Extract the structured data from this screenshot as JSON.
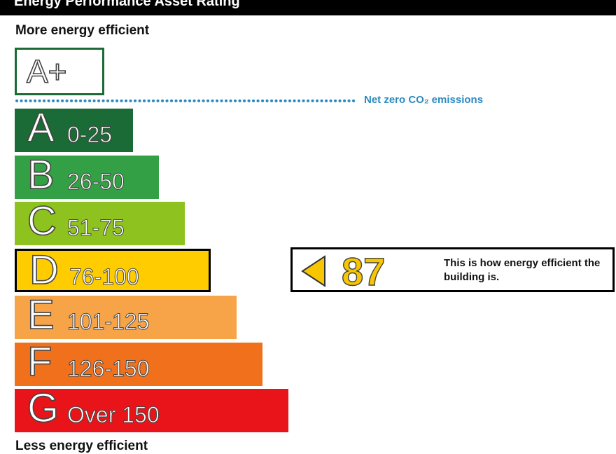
{
  "header": {
    "title": "Energy Performance Asset Rating"
  },
  "labels": {
    "more_efficient": "More energy efficient",
    "less_efficient": "Less energy efficient"
  },
  "top_rating": {
    "letter": "A+",
    "border_color": "#1a6b35"
  },
  "net_zero": {
    "label": "Net zero CO₂ emissions",
    "color": "#2a8bbf"
  },
  "current_rating": {
    "value": "87",
    "band": "D",
    "description": "This is how energy efficient the building is.",
    "arrow_color": "#f7c600"
  },
  "chart_data": {
    "type": "bar",
    "categories": [
      "A",
      "B",
      "C",
      "D",
      "E",
      "F",
      "G"
    ],
    "ranges": [
      "0-25",
      "26-50",
      "51-75",
      "76-100",
      "101-125",
      "126-150",
      "Over 150"
    ],
    "colors": [
      "#1a6b35",
      "#34a046",
      "#8dc21f",
      "#ffcc00",
      "#f7a348",
      "#f0701c",
      "#e81419"
    ],
    "highlighted_band": "D",
    "current_value": 87
  }
}
